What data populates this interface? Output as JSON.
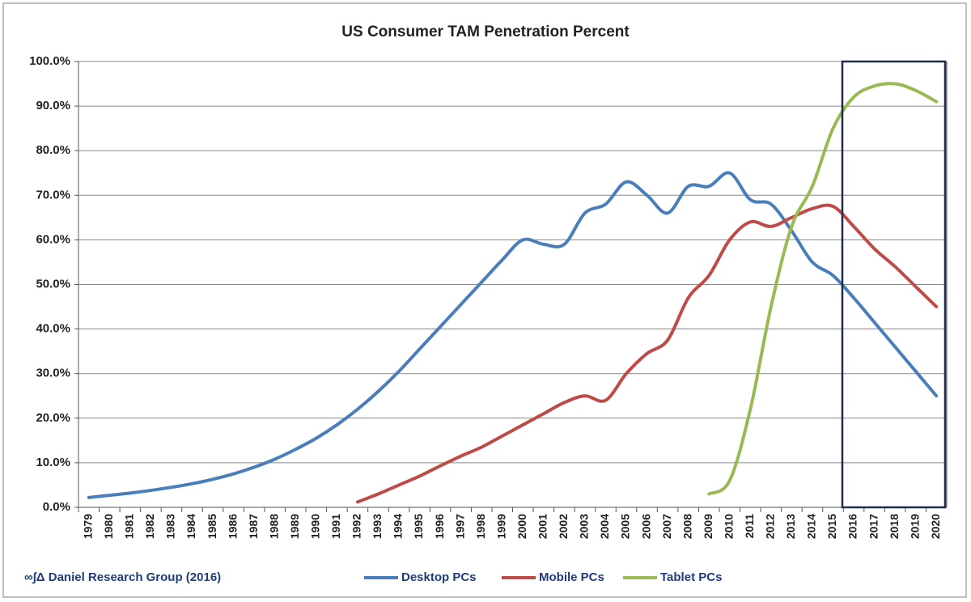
{
  "chart_data": {
    "type": "line",
    "title": "US Consumer TAM Penetration Percent",
    "source": "∞∫Δ Daniel Research Group (2016)",
    "categories": [
      "1979",
      "1980",
      "1981",
      "1982",
      "1983",
      "1984",
      "1985",
      "1986",
      "1987",
      "1988",
      "1989",
      "1990",
      "1991",
      "1992",
      "1993",
      "1994",
      "1995",
      "1996",
      "1997",
      "1998",
      "1999",
      "2000",
      "2001",
      "2002",
      "2003",
      "2004",
      "2005",
      "2006",
      "2007",
      "2008",
      "2009",
      "2010",
      "2011",
      "2012",
      "2013",
      "2014",
      "2015",
      "2016",
      "2017",
      "2018",
      "2019",
      "2020"
    ],
    "series": [
      {
        "name": "Desktop PCs",
        "color": "#4a7ebb",
        "values": [
          2.2,
          2.7,
          3.2,
          3.8,
          4.5,
          5.3,
          6.3,
          7.5,
          9,
          10.8,
          13,
          15.5,
          18.5,
          22,
          26,
          30.5,
          35.5,
          40.5,
          45.5,
          50.5,
          55.5,
          60,
          59,
          59,
          66,
          68,
          73,
          70,
          66,
          72,
          72,
          75,
          69,
          68,
          62,
          55,
          52,
          47,
          41.5,
          36,
          30.5,
          25
        ]
      },
      {
        "name": "Mobile PCs",
        "color": "#be4b48",
        "values": [
          null,
          null,
          null,
          null,
          null,
          null,
          null,
          null,
          null,
          null,
          null,
          null,
          null,
          1.2,
          3,
          5,
          7,
          9.3,
          11.5,
          13.5,
          16,
          18.5,
          21,
          23.5,
          25,
          24,
          30,
          34.5,
          37.5,
          47,
          52,
          60,
          64,
          63,
          65,
          67,
          67.5,
          63,
          58,
          54,
          49.5,
          45
        ]
      },
      {
        "name": "Tablet PCs",
        "color": "#98b954",
        "values": [
          null,
          null,
          null,
          null,
          null,
          null,
          null,
          null,
          null,
          null,
          null,
          null,
          null,
          null,
          null,
          null,
          null,
          null,
          null,
          null,
          null,
          null,
          null,
          null,
          null,
          null,
          null,
          null,
          null,
          null,
          3,
          6,
          22,
          45,
          63,
          72,
          85,
          92,
          94.5,
          95,
          93.5,
          91
        ]
      }
    ],
    "ylim": [
      0,
      100
    ],
    "yticks": [
      {
        "value": 0,
        "label": "0.0%"
      },
      {
        "value": 10,
        "label": "10.0%"
      },
      {
        "value": 20,
        "label": "20.0%"
      },
      {
        "value": 30,
        "label": "30.0%"
      },
      {
        "value": 40,
        "label": "40.0%"
      },
      {
        "value": 50,
        "label": "50.0%"
      },
      {
        "value": 60,
        "label": "60.0%"
      },
      {
        "value": 70,
        "label": "70.0%"
      },
      {
        "value": 80,
        "label": "80.0%"
      },
      {
        "value": 90,
        "label": "90.0%"
      },
      {
        "value": 100,
        "label": "100.0%"
      }
    ],
    "grid": true
  }
}
